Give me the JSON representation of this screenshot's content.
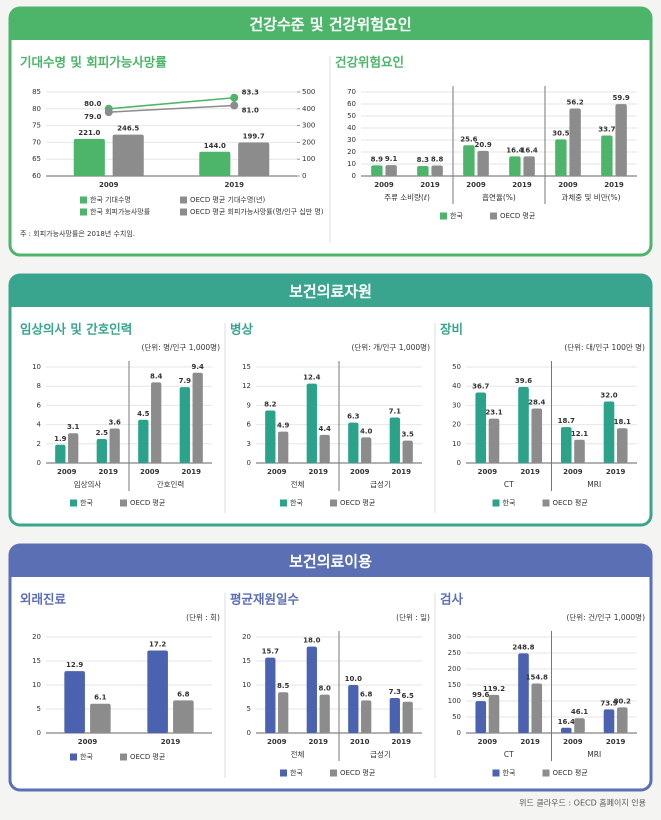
{
  "sections": [
    {
      "title": "건강수준 및 건강위험요인"
    },
    {
      "title": "보건의료자원"
    },
    {
      "title": "보건의료이용"
    }
  ],
  "footer": "위드 클라우드 : OECD 홈페이지 인용",
  "chart_data": [
    {
      "type": "combo",
      "title": "기대수명 및 회피가능사망률",
      "categories": [
        "2009",
        "2019"
      ],
      "ylim": [
        60,
        85
      ],
      "yticks": [
        60,
        65,
        70,
        75,
        80,
        85
      ],
      "y2lim": [
        0,
        500
      ],
      "y2ticks": [
        0,
        100,
        200,
        300,
        400,
        500
      ],
      "series": [
        {
          "name": "한국 기대수명",
          "type": "line",
          "color": "#4db56a",
          "values": [
            80.0,
            83.3
          ],
          "value_labels": [
            "80.0",
            "83.3"
          ]
        },
        {
          "name": "OECD 평균 기대수명(년)",
          "type": "line",
          "color": "#8c8c8c",
          "values": [
            79.0,
            81.0
          ],
          "value_labels": [
            "79.0",
            "81.0"
          ]
        },
        {
          "name": "한국 회피가능사망률",
          "type": "bar",
          "axis": "y2",
          "color": "#4db56a",
          "values": [
            221.0,
            144.0
          ],
          "value_labels": [
            "221.0",
            "144.0"
          ]
        },
        {
          "name": "OECD 평균 회피가능사망률(명/인구 십만 명)",
          "type": "bar",
          "axis": "y2",
          "color": "#8c8c8c",
          "values": [
            246.5,
            199.7
          ]
        }
      ],
      "note": "주 : 회피가능사망률은 2018년 수치임."
    },
    {
      "type": "bar",
      "title": "건강위험요인",
      "groups": [
        "주류 소비량(ℓ)",
        "흡연율(%)",
        "과체중 및 비만(%)"
      ],
      "categories": [
        "2009",
        "2019",
        "2009",
        "2019",
        "2009",
        "2019"
      ],
      "ylim": [
        0,
        70
      ],
      "yticks": [
        0,
        10,
        20,
        30,
        40,
        50,
        60,
        70
      ],
      "series": [
        {
          "name": "한국",
          "color": "#4db56a",
          "values": [
            8.9,
            8.3,
            25.6,
            16.4,
            30.5,
            33.7
          ]
        },
        {
          "name": "OECD 평균",
          "color": "#8c8c8c",
          "values": [
            9.1,
            8.8,
            20.9,
            16.4,
            56.2,
            59.9
          ]
        }
      ]
    },
    {
      "type": "bar",
      "title": "임상의사 및 간호인력",
      "unit": "(단위: 명/인구 1,000명)",
      "groups": [
        "임상의사",
        "간호인력"
      ],
      "categories": [
        "2009",
        "2019",
        "2009",
        "2019"
      ],
      "ylim": [
        0,
        10
      ],
      "yticks": [
        0,
        2,
        4,
        6,
        8,
        10
      ],
      "series": [
        {
          "name": "한국",
          "color": "#2aa38a",
          "values": [
            1.9,
            2.5,
            4.5,
            7.9
          ]
        },
        {
          "name": "OECD 평균",
          "color": "#8c8c8c",
          "values": [
            3.1,
            3.6,
            8.4,
            9.4
          ]
        }
      ]
    },
    {
      "type": "bar",
      "title": "병상",
      "unit": "(단위: 개/인구 1,000명)",
      "groups": [
        "전체",
        "급성기"
      ],
      "categories": [
        "2009",
        "2019",
        "2009",
        "2019"
      ],
      "ylim": [
        0,
        15
      ],
      "yticks": [
        0,
        3,
        6,
        9,
        12,
        15
      ],
      "series": [
        {
          "name": "한국",
          "color": "#2aa38a",
          "values": [
            8.2,
            12.4,
            6.3,
            7.1
          ]
        },
        {
          "name": "OECD 평균",
          "color": "#8c8c8c",
          "values": [
            4.9,
            4.4,
            4.0,
            3.5
          ],
          "value_labels": [
            "4.9",
            "4.4",
            "4.0",
            "3.5"
          ]
        }
      ]
    },
    {
      "type": "bar",
      "title": "장비",
      "unit": "(단위: 대/인구 100만 명)",
      "groups": [
        "CT",
        "MRI"
      ],
      "categories": [
        "2009",
        "2019",
        "2009",
        "2019"
      ],
      "ylim": [
        0,
        50
      ],
      "yticks": [
        0,
        10,
        20,
        30,
        40,
        50
      ],
      "series": [
        {
          "name": "한국",
          "color": "#2aa38a",
          "values": [
            36.7,
            39.6,
            18.7,
            32.0
          ],
          "value_labels": [
            "36.7",
            "39.6",
            "18.7",
            "32.0"
          ]
        },
        {
          "name": "OECD 평균",
          "color": "#8c8c8c",
          "values": [
            23.1,
            28.4,
            12.1,
            18.1
          ]
        }
      ]
    },
    {
      "type": "bar",
      "title": "외래진료",
      "unit": "(단위 : 회)",
      "categories": [
        "2009",
        "2019"
      ],
      "ylim": [
        0,
        20
      ],
      "yticks": [
        0,
        5,
        10,
        15,
        20
      ],
      "series": [
        {
          "name": "한국",
          "color": "#4a62b0",
          "values": [
            12.9,
            17.2
          ]
        },
        {
          "name": "OECD 평균",
          "color": "#8c8c8c",
          "values": [
            6.1,
            6.8
          ]
        }
      ]
    },
    {
      "type": "bar",
      "title": "평균재원일수",
      "unit": "(단위 : 일)",
      "groups": [
        "전체",
        "급성기"
      ],
      "categories": [
        "2009",
        "2019",
        "2010",
        "2019"
      ],
      "ylim": [
        0,
        20
      ],
      "yticks": [
        0,
        5,
        10,
        15,
        20
      ],
      "series": [
        {
          "name": "한국",
          "color": "#4a62b0",
          "values": [
            15.7,
            18.0,
            10.0,
            7.3
          ],
          "value_labels": [
            "15.7",
            "18.0",
            "10.0",
            "7.3"
          ]
        },
        {
          "name": "OECD 평균",
          "color": "#8c8c8c",
          "values": [
            8.5,
            8.0,
            6.8,
            6.5
          ],
          "value_labels": [
            "8.5",
            "8.0",
            "6.8",
            "6.5"
          ]
        }
      ]
    },
    {
      "type": "bar",
      "title": "검사",
      "unit": "(단위: 건/인구 1,000명)",
      "groups": [
        "CT",
        "MRI"
      ],
      "categories": [
        "2009",
        "2019",
        "2009",
        "2019"
      ],
      "ylim": [
        0,
        300
      ],
      "yticks": [
        0,
        50,
        100,
        150,
        200,
        250,
        300
      ],
      "series": [
        {
          "name": "한국",
          "color": "#4a62b0",
          "values": [
            99.6,
            248.8,
            16.4,
            73.9
          ]
        },
        {
          "name": "OECD 평균",
          "color": "#8c8c8c",
          "values": [
            119.2,
            154.8,
            46.1,
            80.2
          ]
        }
      ]
    }
  ]
}
